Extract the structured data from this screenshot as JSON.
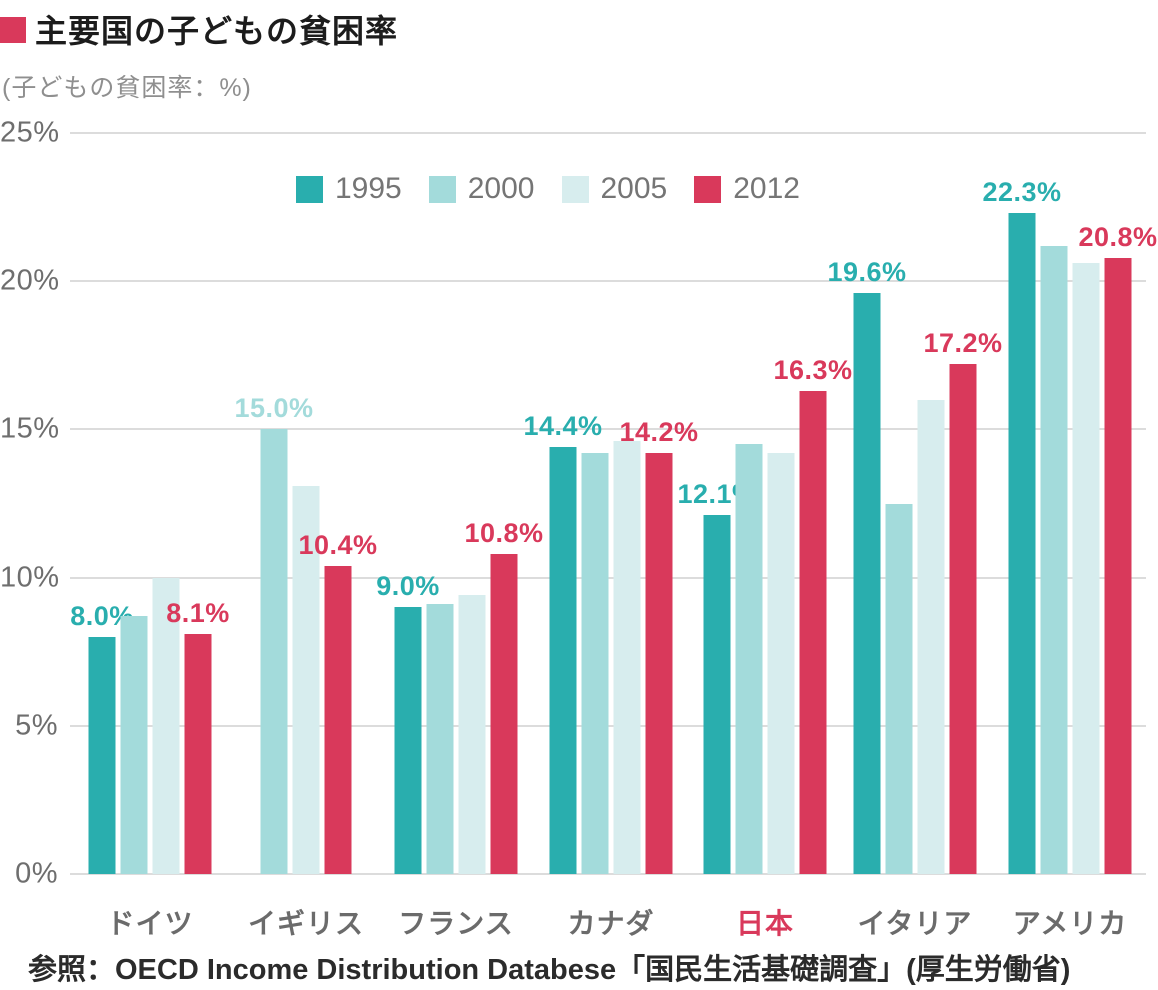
{
  "header": {
    "title": "主要国の子どもの貧困率",
    "bullet_color": "#D9395B"
  },
  "subtitle": "(子どもの貧困率：%)",
  "source": "参照：OECD Income Distribution Databese「国民生活基礎調査」(厚生労働省)",
  "chart_data": {
    "type": "bar",
    "title": "主要国の子どもの貧困率",
    "ylabel": "子どもの貧困率（%）",
    "xlabel": "",
    "ylim": [
      0,
      25
    ],
    "yticks": [
      0,
      5,
      10,
      15,
      20,
      25
    ],
    "ytick_suffix": "%",
    "grid": true,
    "legend_position": "top-center",
    "categories": [
      "ドイツ",
      "イギリス",
      "フランス",
      "カナダ",
      "日本",
      "イタリア",
      "アメリカ"
    ],
    "highlight_category": "日本",
    "highlight_color": "#D9395B",
    "series": [
      {
        "name": "1995",
        "color": "#29AEAE",
        "values": [
          8.0,
          null,
          9.0,
          14.4,
          12.1,
          19.6,
          22.3
        ],
        "labels": [
          "8.0%",
          null,
          "9.0%",
          "14.4%",
          "12.1%",
          "19.6%",
          "22.3%"
        ]
      },
      {
        "name": "2000",
        "color": "#A3DBDB",
        "values": [
          8.7,
          15.0,
          9.1,
          14.2,
          14.5,
          12.5,
          21.2
        ],
        "labels": [
          null,
          "15.0%",
          null,
          null,
          null,
          null,
          null
        ]
      },
      {
        "name": "2005",
        "color": "#D7EDEE",
        "values": [
          10.0,
          13.1,
          9.4,
          14.6,
          14.2,
          16.0,
          20.6
        ],
        "labels": [
          null,
          null,
          null,
          null,
          null,
          null,
          null
        ]
      },
      {
        "name": "2012",
        "color": "#D9395B",
        "values": [
          8.1,
          10.4,
          10.8,
          14.2,
          16.3,
          17.2,
          20.8
        ],
        "labels": [
          "8.1%",
          "10.4%",
          "10.8%",
          "14.2%",
          "16.3%",
          "17.2%",
          "20.8%"
        ]
      }
    ],
    "grid_color": "#DCDCDC"
  }
}
